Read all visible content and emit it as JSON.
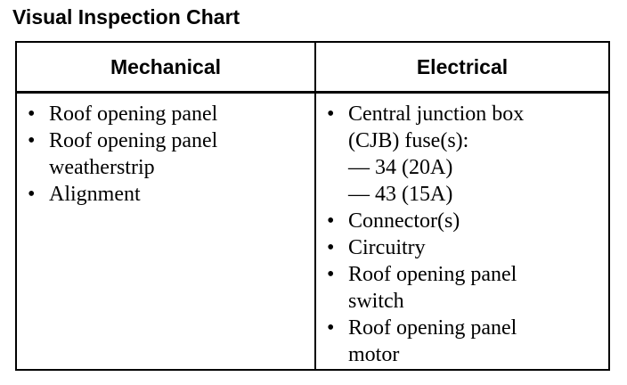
{
  "title": "Visual Inspection Chart",
  "headers": [
    "Mechanical",
    "Electrical"
  ],
  "mechanical": [
    "Roof opening panel",
    "Roof opening panel weatherstrip",
    "Alignment"
  ],
  "electrical": {
    "cjb": "Central junction box (CJB) fuse(s):",
    "fuses": [
      "— 34 (20A)",
      "— 43 (15A)"
    ],
    "items": [
      "Connector(s)",
      "Circuitry",
      "Roof opening panel switch",
      "Roof opening panel motor"
    ]
  }
}
